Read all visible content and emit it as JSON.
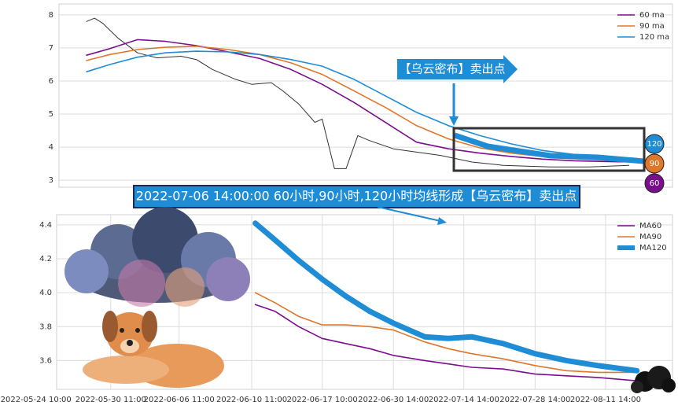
{
  "chart_data": [
    {
      "type": "line",
      "legend": "upper right",
      "grid": true,
      "xlim": [
        0,
        100
      ],
      "ylim": [
        2.79,
        8.33
      ],
      "yticks": [
        3,
        4,
        5,
        6,
        7,
        8
      ],
      "x": [
        4.5,
        8.3,
        12.8,
        17.3,
        22.4,
        27.6,
        32.7,
        37.8,
        42.9,
        48.1,
        53.2,
        58.3,
        63.5,
        68.6,
        73.7,
        78.8,
        84,
        90.4,
        94.2
      ],
      "series": [
        {
          "color": "#333333",
          "width": 1,
          "x": [
            4.5,
            5.8,
            7.1,
            9.6,
            12.8,
            16,
            19.9,
            22.4,
            25,
            28.8,
            31.4,
            34.6,
            36.5,
            39.1,
            41.7,
            42.9,
            44.9,
            46.8,
            48.7,
            50.6,
            54.5,
            58.3,
            62.2,
            67.3,
            72.4,
            80.1,
            86.5,
            92.9
          ],
          "values": [
            7.8,
            7.9,
            7.75,
            7.3,
            6.85,
            6.7,
            6.75,
            6.65,
            6.35,
            6.05,
            5.9,
            5.95,
            5.7,
            5.3,
            4.75,
            4.85,
            3.35,
            3.35,
            4.35,
            4.2,
            3.95,
            3.85,
            3.75,
            3.55,
            3.45,
            3.4,
            3.4,
            3.45
          ]
        },
        {
          "name": "60 ma",
          "color": "#7a0f8c",
          "width": 1.6,
          "values": [
            6.78,
            6.98,
            7.25,
            7.2,
            7.07,
            6.88,
            6.68,
            6.35,
            5.9,
            5.35,
            4.75,
            4.15,
            3.95,
            3.82,
            3.72,
            3.64,
            3.59,
            3.56,
            3.55
          ]
        },
        {
          "name": "90 ma",
          "color": "#e0762a",
          "width": 1.6,
          "values": [
            6.62,
            6.8,
            6.95,
            7.02,
            7.05,
            6.95,
            6.8,
            6.55,
            6.2,
            5.7,
            5.2,
            4.65,
            4.25,
            3.98,
            3.82,
            3.72,
            3.65,
            3.6,
            3.58
          ]
        },
        {
          "name": "120 ma",
          "color": "#1f8dd6",
          "width": 1.6,
          "values": [
            6.28,
            6.5,
            6.72,
            6.85,
            6.9,
            6.88,
            6.8,
            6.65,
            6.45,
            6.05,
            5.55,
            5.05,
            4.65,
            4.35,
            4.1,
            3.9,
            3.78,
            3.7,
            3.66
          ]
        }
      ],
      "annotation": "【乌云密布】卖出点",
      "caption": "2022-07-06 14:00:00 60小时,90小时,120小时均线形成【乌云密布】卖出点",
      "badges": [
        "120",
        "90",
        "60"
      ]
    },
    {
      "type": "line",
      "legend": "upper right",
      "grid": true,
      "xlim": [
        2.9,
        89.4
      ],
      "ylim": [
        3.43,
        4.46
      ],
      "yticks": [
        3.6,
        3.8,
        {
          "value": 4,
          "label": "4.0"
        },
        4.2,
        4.4
      ],
      "xticks": [
        {
          "value": 0,
          "label": "2022-05-24 10:00"
        },
        {
          "value": 10.5,
          "label": "2022-05-30 11:00"
        },
        {
          "value": 20.1,
          "label": "2022-06-06 11:00"
        },
        {
          "value": 30.3,
          "label": "2022-06-10 11:00"
        },
        {
          "value": 40.2,
          "label": "2022-06-17 10:00"
        },
        {
          "value": 50.2,
          "label": "2022-06-30 14:00"
        },
        {
          "value": 60.1,
          "label": "2022-07-14 14:00"
        },
        {
          "value": 70.1,
          "label": "2022-07-28 14:00"
        },
        {
          "value": 80,
          "label": "2022-08-11 14:00"
        }
      ],
      "x": [
        30.8,
        33.6,
        36.9,
        40.2,
        43.5,
        46.9,
        50.2,
        54.6,
        57.9,
        61.2,
        65.6,
        70.1,
        74.5,
        78.9,
        84.4
      ],
      "series": [
        {
          "name": "MA60",
          "color": "#7a0f8c",
          "width": 1.6,
          "values": [
            3.93,
            3.89,
            3.8,
            3.73,
            3.7,
            3.67,
            3.63,
            3.6,
            3.58,
            3.56,
            3.55,
            3.52,
            3.51,
            3.5,
            3.48
          ]
        },
        {
          "name": "MA90",
          "color": "#e0762a",
          "width": 1.6,
          "values": [
            4.0,
            3.94,
            3.86,
            3.81,
            3.81,
            3.8,
            3.78,
            3.71,
            3.67,
            3.64,
            3.61,
            3.57,
            3.54,
            3.53,
            3.53
          ]
        },
        {
          "name": "MA120",
          "color": "#1f8dd6",
          "width": 7,
          "values": [
            4.41,
            4.31,
            4.19,
            4.08,
            3.98,
            3.89,
            3.82,
            3.74,
            3.73,
            3.74,
            3.7,
            3.64,
            3.6,
            3.57,
            3.54
          ]
        }
      ]
    }
  ]
}
